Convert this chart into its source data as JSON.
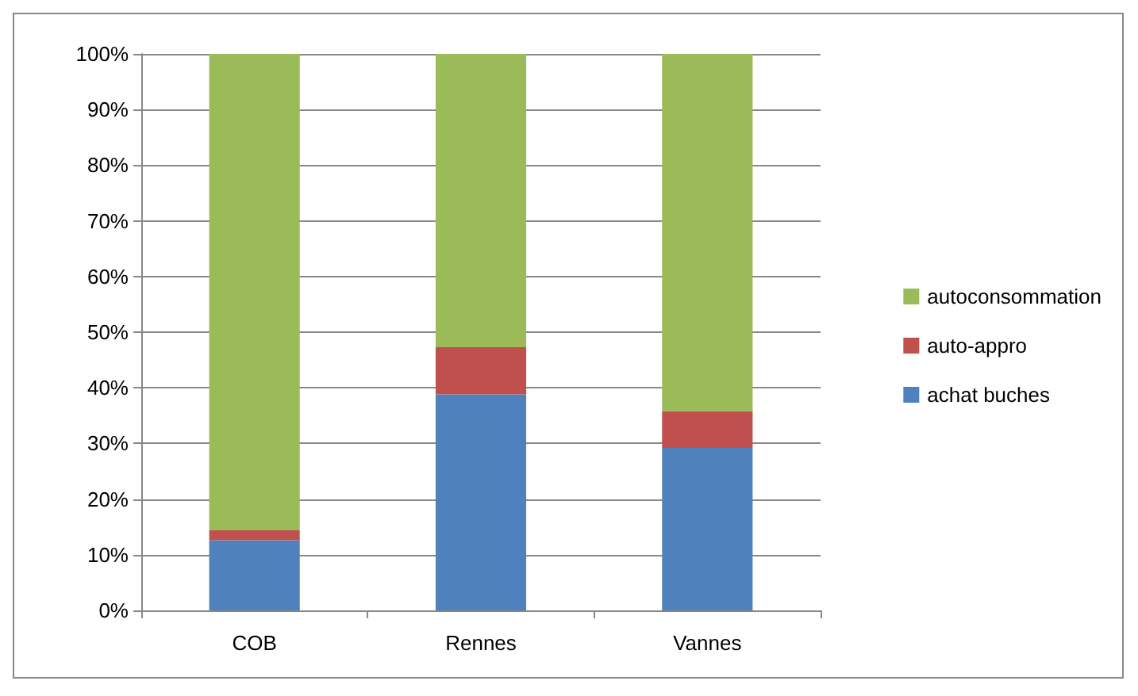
{
  "chart_data": {
    "type": "bar",
    "stacked": true,
    "categories": [
      "COB",
      "Rennes",
      "Vannes"
    ],
    "series": [
      {
        "name": "achat buches",
        "color": "#4f81bd",
        "values": [
          12.6,
          38.8,
          29.2
        ]
      },
      {
        "name": "auto-appro",
        "color": "#c0504d",
        "values": [
          1.8,
          8.5,
          6.6
        ]
      },
      {
        "name": "autoconsommation",
        "color": "#9bbb59",
        "values": [
          85.6,
          52.7,
          64.2
        ]
      }
    ],
    "ylim": [
      0,
      100
    ],
    "yticks": [
      {
        "value": 0,
        "label": "0%"
      },
      {
        "value": 10,
        "label": "10%"
      },
      {
        "value": 20,
        "label": "20%"
      },
      {
        "value": 30,
        "label": "30%"
      },
      {
        "value": 40,
        "label": "40%"
      },
      {
        "value": 50,
        "label": "50%"
      },
      {
        "value": 60,
        "label": "60%"
      },
      {
        "value": 70,
        "label": "70%"
      },
      {
        "value": 80,
        "label": "80%"
      },
      {
        "value": 90,
        "label": "90%"
      },
      {
        "value": 100,
        "label": "100%"
      }
    ],
    "grid": "y",
    "legend": "right"
  }
}
